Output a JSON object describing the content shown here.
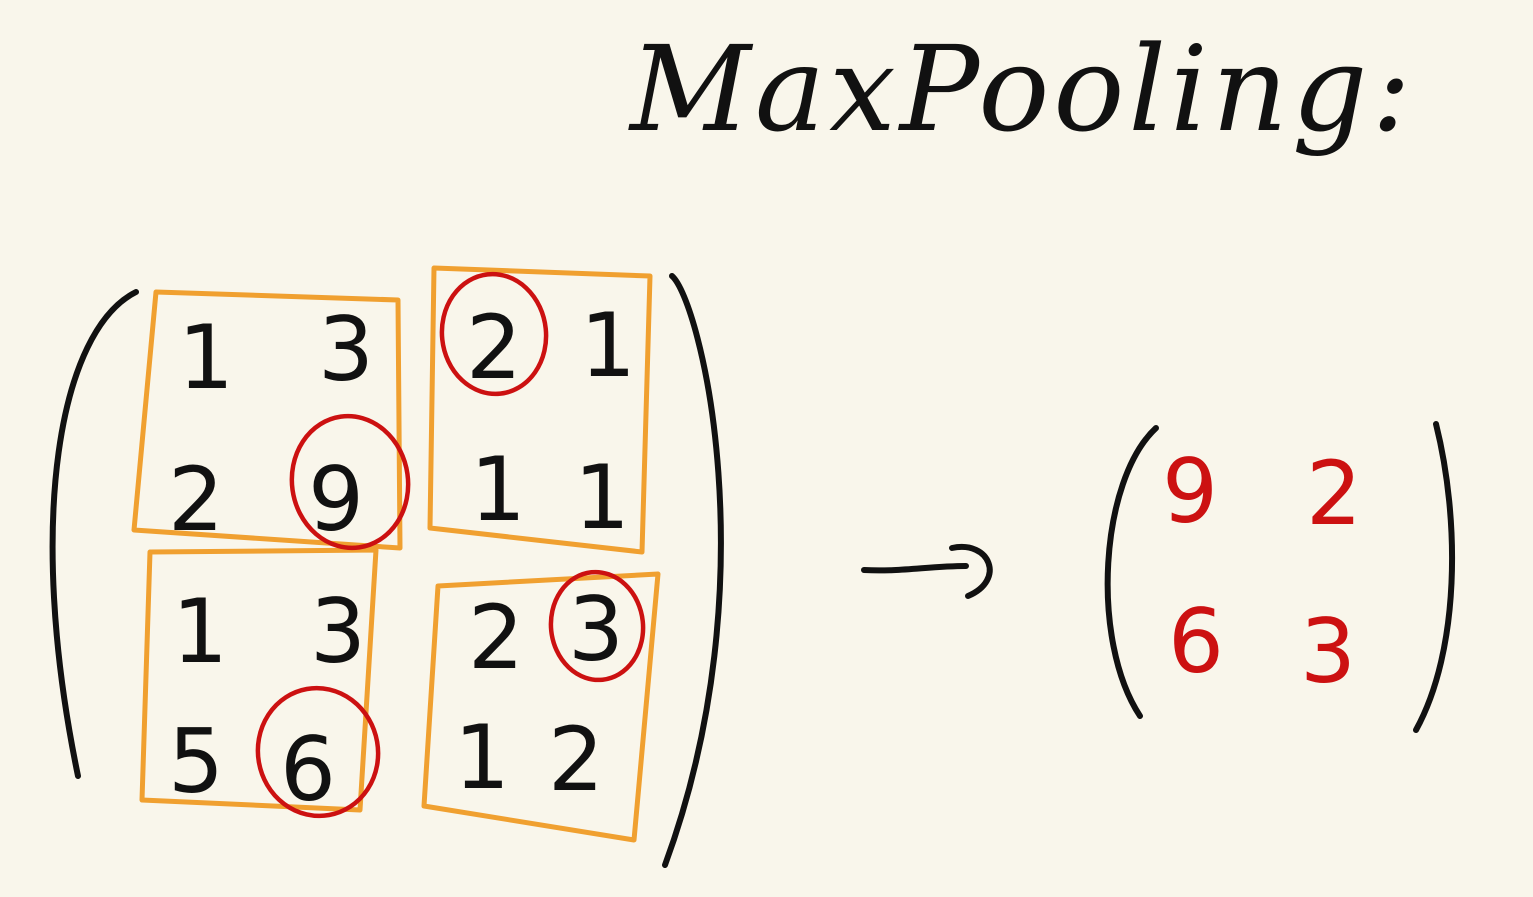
{
  "title": "MaxPooling:",
  "input_matrix": {
    "blocks": [
      {
        "id": "top-left",
        "cells": [
          "1",
          "3",
          "2",
          "9"
        ],
        "max_index": 3
      },
      {
        "id": "top-right",
        "cells": [
          "2",
          "1",
          "1",
          "1"
        ],
        "max_index": 0
      },
      {
        "id": "bottom-left",
        "cells": [
          "1",
          "3",
          "5",
          "6"
        ],
        "max_index": 3
      },
      {
        "id": "bottom-right",
        "cells": [
          "2",
          "3",
          "1",
          "2"
        ],
        "max_index": 1
      }
    ]
  },
  "output_matrix": {
    "cells": [
      "9",
      "2",
      "6",
      "3"
    ]
  },
  "colors": {
    "background": "#f9f6eb",
    "ink": "#111111",
    "pool_box": "#f0a030",
    "max_highlight": "#cc1111"
  }
}
